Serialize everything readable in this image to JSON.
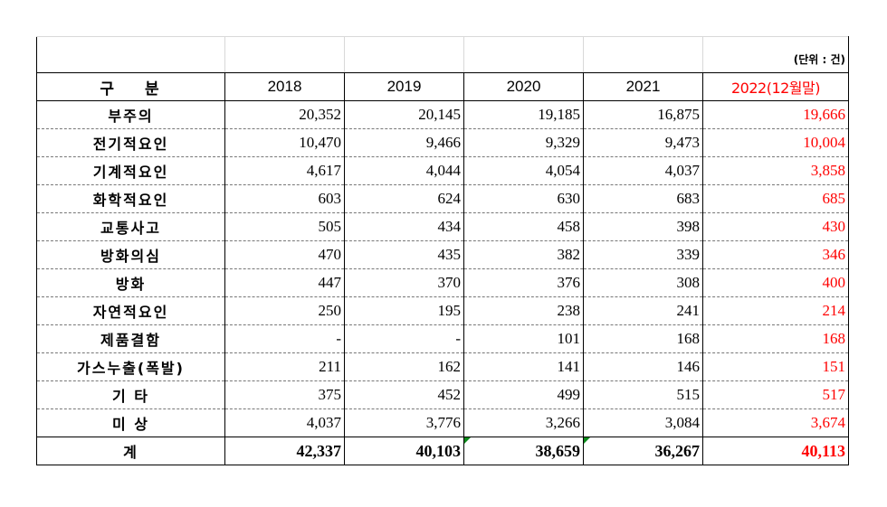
{
  "unit_label": "(단위 : 건)",
  "headers": [
    "구 분",
    "2018",
    "2019",
    "2020",
    "2021",
    "2022(12월말)"
  ],
  "rows": [
    {
      "category": "부주의",
      "values": [
        "20,352",
        "20,145",
        "19,185",
        "16,875",
        "19,666"
      ]
    },
    {
      "category": "전기적요인",
      "values": [
        "10,470",
        "9,466",
        "9,329",
        "9,473",
        "10,004"
      ]
    },
    {
      "category": "기계적요인",
      "values": [
        "4,617",
        "4,044",
        "4,054",
        "4,037",
        "3,858"
      ]
    },
    {
      "category": "화학적요인",
      "values": [
        "603",
        "624",
        "630",
        "683",
        "685"
      ]
    },
    {
      "category": "교통사고",
      "values": [
        "505",
        "434",
        "458",
        "398",
        "430"
      ]
    },
    {
      "category": "방화의심",
      "values": [
        "470",
        "435",
        "382",
        "339",
        "346"
      ]
    },
    {
      "category": "방화",
      "values": [
        "447",
        "370",
        "376",
        "308",
        "400"
      ]
    },
    {
      "category": "자연적요인",
      "values": [
        "250",
        "195",
        "238",
        "241",
        "214"
      ]
    },
    {
      "category": "제품결함",
      "values": [
        "-",
        "-",
        "101",
        "168",
        "168"
      ]
    },
    {
      "category": "가스누출(폭발)",
      "values": [
        "211",
        "162",
        "141",
        "146",
        "151"
      ]
    },
    {
      "category": "기 타",
      "values": [
        "375",
        "452",
        "499",
        "515",
        "517"
      ]
    },
    {
      "category": "미 상",
      "values": [
        "4,037",
        "3,776",
        "3,266",
        "3,084",
        "3,674"
      ]
    }
  ],
  "total": {
    "category": "계",
    "values": [
      "42,337",
      "40,103",
      "38,659",
      "36,267",
      "40,113"
    ]
  },
  "colors": {
    "highlight_red": "#ff0000",
    "cell_marker_green": "#0a8a1a"
  }
}
